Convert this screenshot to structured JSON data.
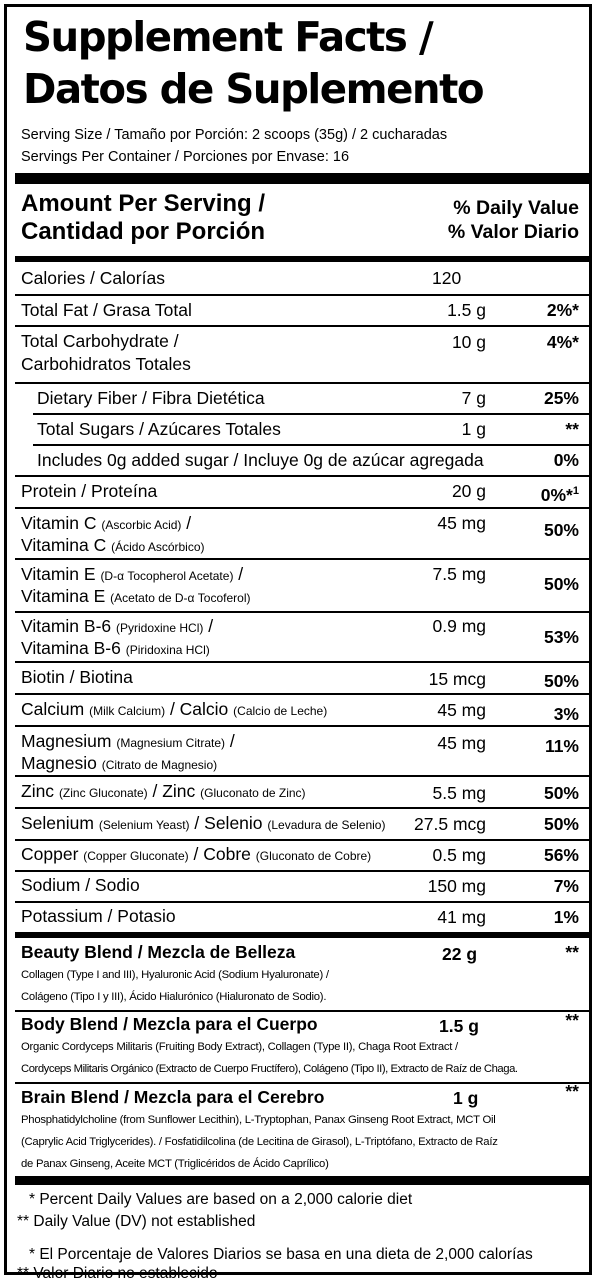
{
  "title_line1": "Supplement Facts /",
  "title_line2": "Datos de Suplemento",
  "serving_size": "Serving Size / Tamaño por Porción: 2 scoops (35g) / 2 cucharadas",
  "servings_per_container": "Servings Per Container / Porciones por Envase: 16",
  "header": {
    "amount_line1": "Amount Per Serving /",
    "amount_line2": "Cantidad por Porción",
    "dv_line1": "% Daily Value",
    "dv_line2": "% Valor Diario"
  },
  "rows": {
    "calories": {
      "name": "Calories / Calorías",
      "amount": "120",
      "dv": ""
    },
    "total_fat": {
      "name": "Total Fat / Grasa Total",
      "amount": "1.5 g",
      "dv": "2%*"
    },
    "total_carb": {
      "name1": "Total Carbohydrate /",
      "name2": "Carbohidratos Totales",
      "amount": "10 g",
      "dv": "4%*"
    },
    "fiber": {
      "name": "Dietary Fiber / Fibra Dietética",
      "amount": "7 g",
      "dv": "25%"
    },
    "sugars": {
      "name": "Total Sugars / Azúcares Totales",
      "amount": "1 g",
      "dv": "**"
    },
    "added_sugar": {
      "name": "Includes 0g added sugar / Incluye 0g de azúcar agregada",
      "dv": "0%"
    },
    "protein": {
      "name": "Protein / Proteína",
      "amount": "20 g",
      "dv": "0%*",
      "dv_sup": "1"
    },
    "vitamin_c": {
      "n1": "Vitamin C ",
      "s1": "(Ascorbic Acid)",
      "e1": " /",
      "n2": "Vitamina C ",
      "s2": "(Ácido Ascórbico)",
      "amount": "45 mg",
      "dv": "50%"
    },
    "vitamin_e": {
      "n1": "Vitamin E ",
      "s1": "(D-α Tocopherol Acetate)",
      "e1": " /",
      "n2": "Vitamina E ",
      "s2": "(Acetato de D-α Tocoferol)",
      "amount": "7.5 mg",
      "dv": "50%"
    },
    "vitamin_b6": {
      "n1": "Vitamin B-6 ",
      "s1": "(Pyridoxine HCl)",
      "e1": " /",
      "n2": "Vitamina B-6 ",
      "s2": "(Piridoxina HCl)",
      "amount": "0.9 mg",
      "dv": "53%"
    },
    "biotin": {
      "name": "Biotin / Biotina",
      "amount": "15 mcg",
      "dv": "50%"
    },
    "calcium": {
      "n1": "Calcium ",
      "s1": "(Milk Calcium)",
      "n2": " / Calcio ",
      "s2": "(Calcio de Leche)",
      "amount": "45 mg",
      "dv": "3%"
    },
    "magnesium": {
      "n1": "Magnesium ",
      "s1": "(Magnesium Citrate)",
      "e1": " /",
      "n2": "Magnesio ",
      "s2": "(Citrato de Magnesio)",
      "amount": "45 mg",
      "dv": "11%"
    },
    "zinc": {
      "n1": "Zinc ",
      "s1": "(Zinc Gluconate)",
      "n2": " / Zinc ",
      "s2": "(Gluconato de Zinc)",
      "amount": "5.5 mg",
      "dv": "50%"
    },
    "selenium": {
      "n1": "Selenium ",
      "s1": "(Selenium Yeast)",
      "n2": " / Selenio ",
      "s2": "(Levadura de Selenio)",
      "amount": "27.5 mcg",
      "dv": "50%"
    },
    "copper": {
      "n1": "Copper ",
      "s1": "(Copper Gluconate)",
      "n2": " / Cobre ",
      "s2": "(Gluconato de Cobre)",
      "amount": "0.5 mg",
      "dv": "56%"
    },
    "sodium": {
      "name": "Sodium / Sodio",
      "amount": "150 mg",
      "dv": "7%"
    },
    "potassium": {
      "name": "Potassium / Potasio",
      "amount": "41 mg",
      "dv": "1%"
    }
  },
  "blends": {
    "beauty": {
      "title": "Beauty Blend / Mezcla de Belleza",
      "amount": "22 g",
      "dv": "**",
      "ing1": "Collagen (Type I and III), Hyaluronic Acid (Sodium Hyaluronate) /",
      "ing2": "Colágeno (Tipo I y III), Ácido Hialurónico (Hialuronato de Sodio)."
    },
    "body": {
      "title": "Body Blend / Mezcla para el Cuerpo",
      "amount": "1.5 g",
      "dv": "**",
      "ing1": "Organic Cordyceps Militaris (Fruiting Body Extract), Collagen (Type II), Chaga Root Extract /",
      "ing2": "Cordyceps Militaris Orgánico (Extracto de Cuerpo Fructífero), Colágeno (Tipo II), Extracto de Raíz de Chaga."
    },
    "brain": {
      "title": "Brain Blend / Mezcla para el Cerebro",
      "amount": "1 g",
      "dv": "**",
      "ing1": "Phosphatidylcholine (from Sunflower Lecithin), L-Tryptophan, Panax Ginseng Root Extract, MCT Oil",
      "ing2": "(Caprylic Acid Triglycerides).  / Fosfatidilcolina (de Lecitina de Girasol), L-Triptófano, Extracto de Raíz",
      "ing3": "de Panax Ginseng, Aceite MCT (Triglicéridos de Ácido Caprílico)"
    }
  },
  "footnotes": {
    "f1": "* Percent Daily Values are based on a 2,000 calorie diet",
    "f2": "** Daily Value (DV) not established",
    "f3": "* El Porcentaje de Valores Diarios se basa en una dieta de 2,000 calorías",
    "f4": "** Valor Diario no establecido"
  }
}
